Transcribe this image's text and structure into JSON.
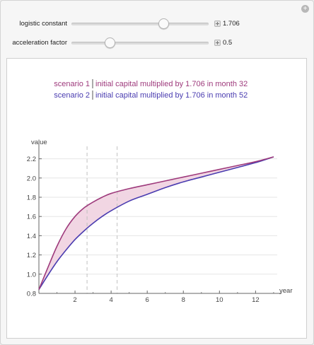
{
  "controls": [
    {
      "label": "logistic constant",
      "value": "1.706",
      "fraction": 0.675
    },
    {
      "label": "acceleration factor",
      "value": "0.5",
      "fraction": 0.28
    }
  ],
  "legend": {
    "s1_name": "scenario 1",
    "s1_text": "initial capital multiplied by 1.706 in month 32",
    "s2_name": "scenario 2",
    "s2_text": "initial capital multiplied by 1.706 in month 52"
  },
  "colors": {
    "scenario1": "#9e3a7c",
    "scenario2": "#4a3cb0",
    "fill": "#f1d6e3",
    "dashed": "#c0c0c0"
  },
  "chart_data": {
    "type": "line",
    "xlabel": "year",
    "ylabel": "value",
    "xlim": [
      0,
      13.2
    ],
    "ylim": [
      0.8,
      2.3
    ],
    "xticks": [
      "2",
      "4",
      "6",
      "8",
      "10",
      "12"
    ],
    "yticks": [
      "0.8",
      "1.0",
      "1.2",
      "1.4",
      "1.6",
      "1.8",
      "2.0",
      "2.2"
    ],
    "dashed_x": [
      2.667,
      4.333
    ],
    "series": [
      {
        "name": "scenario 1",
        "x": [
          0,
          0.5,
          1,
          1.5,
          2,
          2.5,
          3,
          3.5,
          4,
          5,
          6,
          7,
          8,
          9,
          10,
          11,
          12,
          13
        ],
        "y": [
          0.84,
          1.07,
          1.29,
          1.47,
          1.6,
          1.69,
          1.75,
          1.8,
          1.84,
          1.89,
          1.93,
          1.97,
          2.01,
          2.05,
          2.09,
          2.13,
          2.17,
          2.22
        ]
      },
      {
        "name": "scenario 2",
        "x": [
          0,
          0.5,
          1,
          1.5,
          2,
          2.5,
          3,
          3.5,
          4,
          5,
          6,
          7,
          8,
          9,
          10,
          11,
          12,
          13
        ],
        "y": [
          0.84,
          0.99,
          1.13,
          1.25,
          1.36,
          1.45,
          1.53,
          1.6,
          1.66,
          1.76,
          1.83,
          1.9,
          1.96,
          2.01,
          2.06,
          2.11,
          2.16,
          2.22
        ]
      }
    ]
  }
}
